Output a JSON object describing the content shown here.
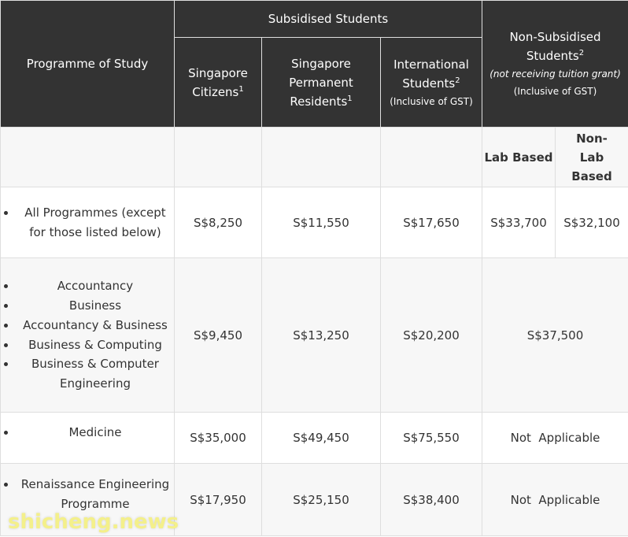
{
  "header": {
    "programme_of_study": "Programme of Study",
    "subsidised_students": "Subsidised Students",
    "non_subsidised_students": "Non-Subsidised Students",
    "non_subsidised_sup": "2",
    "non_subsidised_note": "(not receiving tuition grant)",
    "non_subsidised_gst": "(Inclusive of GST)",
    "singapore_citizens": "Singapore Citizens",
    "singapore_citizens_sup": "1",
    "permanent_residents": "Singapore Permanent Residents",
    "permanent_residents_sup": "1",
    "international_students": "International Students",
    "international_students_sup": "2",
    "international_gst": "(Inclusive of GST)",
    "lab_based": "Lab Based",
    "non_lab_based": "Non-Lab Based"
  },
  "rows": [
    {
      "programmes": [
        "All Programmes (except for those listed below)"
      ],
      "citizens": "S$8,250",
      "pr": "S$11,550",
      "international": "S$17,650",
      "lab_based": "S$33,700",
      "non_lab_based": "S$32,100"
    },
    {
      "programmes": [
        "Accountancy",
        "Business",
        "Accountancy & Business",
        "Business & Computing",
        "Business & Computer Engineering"
      ],
      "citizens": "S$9,450",
      "pr": "S$13,250",
      "international": "S$20,200",
      "non_subsidised": "S$37,500"
    },
    {
      "programmes": [
        "Medicine"
      ],
      "citizens": "S$35,000",
      "pr": "S$49,450",
      "international": "S$75,550",
      "non_subsidised": "Not  Applicable"
    },
    {
      "programmes": [
        "Renaissance Engineering Programme"
      ],
      "citizens": "S$17,950",
      "pr": "S$25,150",
      "international": "S$38,400",
      "non_subsidised": "Not  Applicable"
    }
  ],
  "watermark": "shicheng.news",
  "colors": {
    "header_bg": "#333333",
    "border": "#dedede",
    "alt_row": "#f7f7f7",
    "watermark": "#f4f08a"
  }
}
